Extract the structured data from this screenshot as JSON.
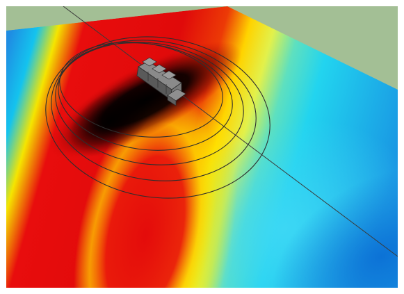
{
  "scene": {
    "sky_color": "#a3bf95",
    "frame_color": "#ffffff",
    "colormap": [
      "#000000",
      "#e00a0a",
      "#ffee00",
      "#18d9f1",
      "#0b74d8"
    ],
    "iso_ring_count": 5,
    "model_color": "#6d6d6d",
    "axis_color": "#3a3a3a",
    "icon": "building-model-icon"
  }
}
